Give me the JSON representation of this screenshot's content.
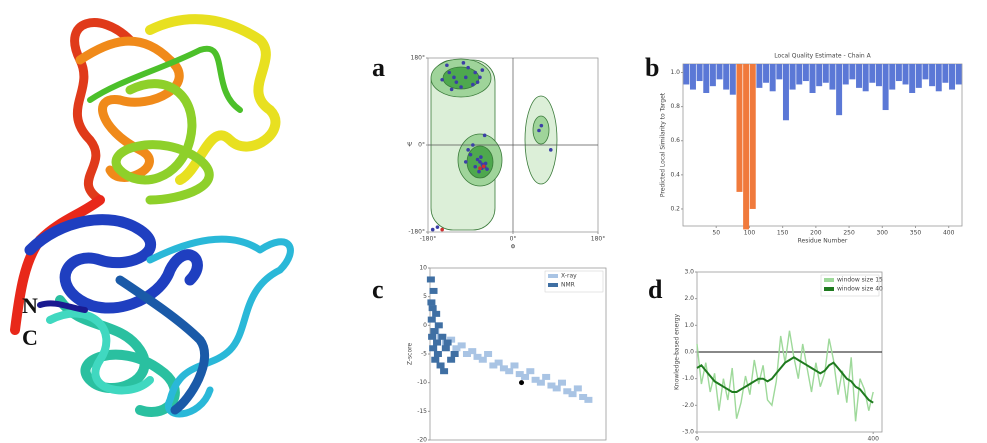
{
  "structure_labels": {
    "n": "N",
    "c": "C"
  },
  "chart_data": [
    {
      "type": "scatter",
      "panel_label": "a",
      "xlabel": "Φ",
      "ylabel": "Ψ",
      "marker": "circle",
      "grid": true,
      "xlim": [
        -180,
        180
      ],
      "ylim": [
        -180,
        180
      ],
      "xticks": [
        {
          "value": -180,
          "label": "-180°"
        },
        {
          "value": 0,
          "label": "0°"
        },
        {
          "value": 180,
          "label": "180°"
        }
      ],
      "yticks": [
        {
          "value": -180,
          "label": "-180°"
        },
        {
          "value": 0,
          "label": "0°"
        },
        {
          "value": 180,
          "label": "180°"
        }
      ],
      "series": [
        {
          "color": "#3b3fa6",
          "x": [
            -120,
            -135,
            -100,
            -80,
            -70,
            -140,
            -110,
            -95,
            -125,
            -150,
            -85,
            -65,
            -105,
            -130,
            -75,
            -65,
            -60,
            -70,
            -55,
            -75,
            -63,
            -68,
            -90,
            -80,
            -58,
            -72,
            -95,
            -85,
            -100,
            -66,
            60,
            55,
            -160,
            -170,
            80,
            -60
          ],
          "values": [
            130,
            150,
            140,
            150,
            140,
            165,
            120,
            160,
            140,
            135,
            125,
            155,
            170,
            115,
            130,
            -40,
            -45,
            -35,
            -50,
            -30,
            -42,
            -25,
            -20,
            -45,
            -38,
            -55,
            -10,
            0,
            -35,
            -48,
            40,
            30,
            -170,
            -175,
            -10,
            20
          ]
        },
        {
          "color": "#d03030",
          "x": [
            -62,
            -70,
            -150
          ],
          "values": [
            -44,
            -48,
            -175
          ]
        }
      ]
    },
    {
      "type": "bar",
      "panel_label": "b",
      "title": "Local Quality Estimate - Chain A",
      "xlabel": "Residue Number",
      "ylabel": "Predicted Local Similarity to Target",
      "xlim": [
        0,
        420
      ],
      "ylim": [
        0.1,
        1.05
      ],
      "xticks": [
        50,
        100,
        150,
        200,
        250,
        300,
        350,
        400
      ],
      "yticks": [
        0.2,
        0.4,
        0.6,
        0.8,
        {
          "value": 1,
          "label": "1.0"
        }
      ],
      "series": [
        {
          "color": "#5b78d6",
          "x": [
            5,
            15,
            25,
            35,
            45,
            55,
            65,
            75,
            115,
            125,
            135,
            145,
            155,
            165,
            175,
            185,
            195,
            205,
            215,
            225,
            235,
            245,
            255,
            265,
            275,
            285,
            295,
            305,
            315,
            325,
            335,
            345,
            355,
            365,
            375,
            385,
            395,
            405,
            415
          ],
          "values": [
            0.93,
            0.9,
            0.95,
            0.88,
            0.92,
            0.96,
            0.9,
            0.87,
            0.91,
            0.94,
            0.89,
            0.96,
            0.72,
            0.9,
            0.93,
            0.95,
            0.88,
            0.92,
            0.94,
            0.9,
            0.75,
            0.93,
            0.96,
            0.91,
            0.89,
            0.94,
            0.92,
            0.78,
            0.9,
            0.95,
            0.93,
            0.88,
            0.91,
            0.96,
            0.92,
            0.89,
            0.94,
            0.9,
            0.93
          ]
        },
        {
          "color": "#f07a3c",
          "x": [
            85,
            95,
            105
          ],
          "values": [
            0.3,
            0.08,
            0.2
          ]
        }
      ]
    },
    {
      "type": "scatter",
      "panel_label": "c",
      "ylabel": "Z-score",
      "marker": "square",
      "legend": "upper right",
      "xlim": [
        0,
        1000
      ],
      "ylim": [
        -20,
        10
      ],
      "yticks": [
        -20,
        -15,
        -10,
        -5,
        0,
        5,
        10
      ],
      "series": [
        {
          "name": "X-ray",
          "color": "#a9c4e4",
          "x": [
            30,
            60,
            90,
            120,
            150,
            180,
            210,
            240,
            270,
            300,
            330,
            360,
            390,
            420,
            450,
            480,
            510,
            540,
            570,
            600,
            630,
            660,
            690,
            720,
            750,
            780,
            810,
            840,
            870,
            900
          ],
          "values": [
            -1,
            -2,
            -3,
            -2.5,
            -4,
            -3.5,
            -5,
            -4.5,
            -5.5,
            -6,
            -5,
            -7,
            -6.5,
            -7.5,
            -8,
            -7,
            -8.5,
            -9,
            -8,
            -9.5,
            -10,
            -9,
            -10.5,
            -11,
            -10,
            -11.5,
            -12,
            -11,
            -12.5,
            -13
          ]
        },
        {
          "name": "NMR",
          "color": "#3f6fa3",
          "x": [
            5,
            8,
            10,
            12,
            15,
            18,
            20,
            25,
            30,
            35,
            40,
            45,
            50,
            60,
            70,
            80,
            90,
            100,
            120,
            140
          ],
          "values": [
            8,
            4,
            1,
            -2,
            3,
            -4,
            6,
            -1,
            -6,
            2,
            -3,
            -5,
            0,
            -7,
            -2,
            -8,
            -4,
            -3,
            -6,
            -5
          ]
        }
      ],
      "highlight": {
        "x": 520,
        "y": -10,
        "color": "#000000"
      }
    },
    {
      "type": "line",
      "panel_label": "d",
      "ylabel": "Knowledge-based energy",
      "legend": "upper right",
      "xlim": [
        0,
        420
      ],
      "ylim": [
        -3,
        3
      ],
      "xticks": [
        0,
        400
      ],
      "yticks": [
        {
          "value": -3,
          "label": "-3.0"
        },
        {
          "value": -2,
          "label": "-2.0"
        },
        {
          "value": -1,
          "label": "-1.0"
        },
        {
          "value": 0,
          "label": "0.0"
        },
        {
          "value": 1,
          "label": "1.0"
        },
        {
          "value": 2,
          "label": "2.0"
        },
        {
          "value": 3,
          "label": "3.0"
        }
      ],
      "x": [
        0,
        10,
        20,
        30,
        40,
        50,
        60,
        70,
        80,
        90,
        100,
        110,
        120,
        130,
        140,
        150,
        160,
        170,
        180,
        190,
        200,
        210,
        220,
        230,
        240,
        250,
        260,
        270,
        280,
        290,
        300,
        310,
        320,
        330,
        340,
        350,
        360,
        370,
        380,
        390,
        400
      ],
      "series": [
        {
          "name": "window size 15",
          "color": "#9ed99a",
          "values": [
            0.3,
            -1.2,
            -0.4,
            -1.5,
            -0.8,
            -2.2,
            -1.0,
            -1.8,
            -0.6,
            -2.5,
            -1.9,
            -0.9,
            -1.6,
            -0.3,
            -1.2,
            -0.5,
            -1.8,
            -2.0,
            -1.1,
            0.6,
            -0.4,
            0.8,
            -0.2,
            -1.0,
            0.3,
            -0.6,
            -1.5,
            -0.4,
            -1.3,
            -0.8,
            0.5,
            -0.3,
            -1.6,
            -0.7,
            -1.9,
            -0.2,
            -2.6,
            -1.0,
            -1.4,
            -2.2,
            -1.5
          ]
        },
        {
          "name": "window size 40",
          "color": "#1f7a1f",
          "values": [
            -0.6,
            -0.5,
            -0.7,
            -0.9,
            -1.1,
            -1.2,
            -1.3,
            -1.4,
            -1.5,
            -1.5,
            -1.4,
            -1.3,
            -1.2,
            -1.1,
            -1.0,
            -1.0,
            -1.1,
            -1.0,
            -0.8,
            -0.6,
            -0.4,
            -0.3,
            -0.2,
            -0.3,
            -0.4,
            -0.5,
            -0.6,
            -0.7,
            -0.8,
            -0.7,
            -0.5,
            -0.4,
            -0.6,
            -0.8,
            -1.0,
            -1.1,
            -1.3,
            -1.4,
            -1.6,
            -1.8,
            -1.9
          ]
        }
      ]
    }
  ]
}
